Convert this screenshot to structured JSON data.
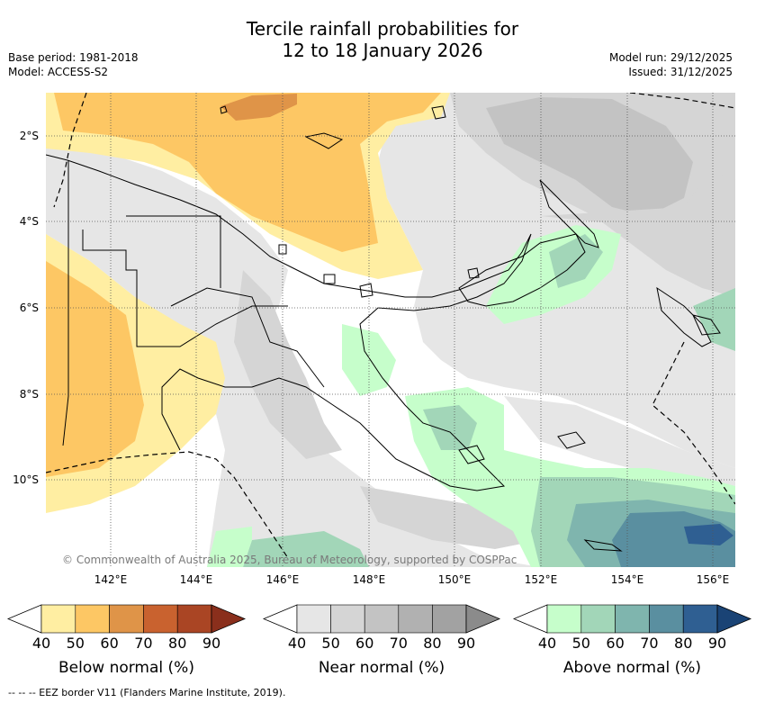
{
  "header": {
    "title_line1": "Tercile rainfall probabilities for",
    "title_line2": "12 to 18 January 2026",
    "base_period": "Base period: 1981-2018",
    "model": "Model: ACCESS-S2",
    "model_run": "Model run: 29/12/2025",
    "issued": "Issued: 31/12/2025"
  },
  "map": {
    "lat_labels": [
      "2°S",
      "4°S",
      "6°S",
      "8°S",
      "10°S"
    ],
    "lon_labels": [
      "142°E",
      "144°E",
      "146°E",
      "148°E",
      "150°E",
      "152°E",
      "154°E",
      "156°E"
    ],
    "copyright": "© Commonwealth of Australia 2025, Bureau of Meteorology, supported by COSPPac",
    "extent": {
      "lon": [
        140.5,
        156.5
      ],
      "lat": [
        -12,
        -1
      ]
    }
  },
  "colorbars": [
    {
      "title": "Below normal (%)",
      "ticks": [
        "40",
        "50",
        "60",
        "70",
        "80",
        "90"
      ],
      "colors": [
        "#ffeea2",
        "#fdc764",
        "#df9448",
        "#c9622f",
        "#aa4524",
        "#8a2f1c"
      ]
    },
    {
      "title": "Near normal (%)",
      "ticks": [
        "40",
        "50",
        "60",
        "70",
        "80",
        "90"
      ],
      "colors": [
        "#e6e6e6",
        "#d5d5d5",
        "#c3c3c3",
        "#b1b1b1",
        "#a2a2a2",
        "#8b8b8b"
      ]
    },
    {
      "title": "Above normal (%)",
      "ticks": [
        "40",
        "50",
        "60",
        "70",
        "80",
        "90"
      ],
      "colors": [
        "#c6fecb",
        "#a2d6b8",
        "#7fb5ae",
        "#5a8fa0",
        "#2f5f92",
        "#1a4375"
      ]
    }
  ],
  "footer": {
    "eez_note": "-- -- -- EEZ border V11 (Flanders Marine Institute, 2019)."
  }
}
